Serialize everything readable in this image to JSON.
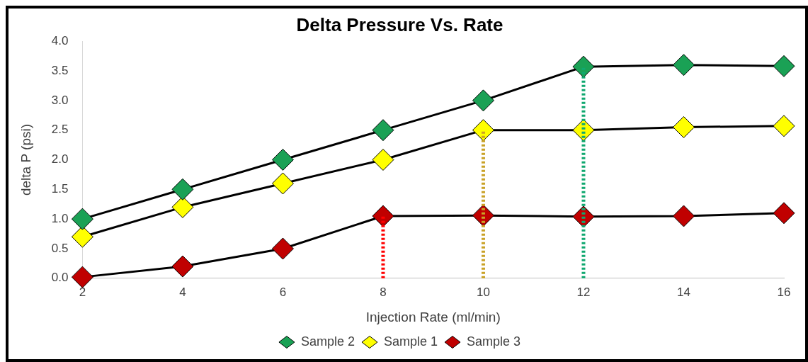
{
  "chart_data": {
    "type": "line",
    "title": "Delta Pressure Vs. Rate",
    "xlabel": "Injection Rate (ml/min)",
    "ylabel": "delta P (psi)",
    "x": [
      2,
      4,
      6,
      8,
      10,
      12,
      14,
      16
    ],
    "xlim": [
      2,
      16
    ],
    "xticks": [
      2,
      4,
      6,
      8,
      10,
      12,
      14,
      16
    ],
    "ylim": [
      0,
      4
    ],
    "yticks": [
      {
        "value": 0,
        "label": "0.0"
      },
      {
        "value": 0.5,
        "label": "0.5"
      },
      {
        "value": 1,
        "label": "1.0"
      },
      {
        "value": 1.5,
        "label": "1.5"
      },
      {
        "value": 2,
        "label": "2.0"
      },
      {
        "value": 2.5,
        "label": "2.5"
      },
      {
        "value": 3,
        "label": "3.0"
      },
      {
        "value": 3.5,
        "label": "3.5"
      },
      {
        "value": 4,
        "label": "4.0"
      }
    ],
    "grid": false,
    "legend": "bottom",
    "marker": "diamond",
    "line_style": "solid",
    "series": [
      {
        "name": "Sample 2",
        "color": "#1aa155",
        "values": [
          1.0,
          1.5,
          2.0,
          2.5,
          3.0,
          3.57,
          3.6,
          3.58
        ]
      },
      {
        "name": "Sample 1",
        "color": "#ffff00",
        "values": [
          0.7,
          1.2,
          1.6,
          2.0,
          2.5,
          2.5,
          2.55,
          2.57
        ]
      },
      {
        "name": "Sample 3",
        "color": "#c00000",
        "values": [
          0.02,
          0.2,
          0.5,
          1.05,
          1.06,
          1.04,
          1.05,
          1.1
        ]
      },
      {
        "type": "line",
        "x": [
          8,
          8
        ],
        "values": [
          0,
          1.05
        ],
        "color": "#ff0000",
        "line_style": "dotted",
        "marker": "none"
      },
      {
        "type": "line",
        "x": [
          10,
          10
        ],
        "values": [
          0,
          2.5
        ],
        "color": "#c9a227",
        "line_style": "dotted",
        "marker": "none"
      },
      {
        "type": "line",
        "x": [
          12,
          12
        ],
        "values": [
          0,
          3.57
        ],
        "color": "#10a870",
        "line_style": "dotted",
        "marker": "none"
      }
    ]
  }
}
